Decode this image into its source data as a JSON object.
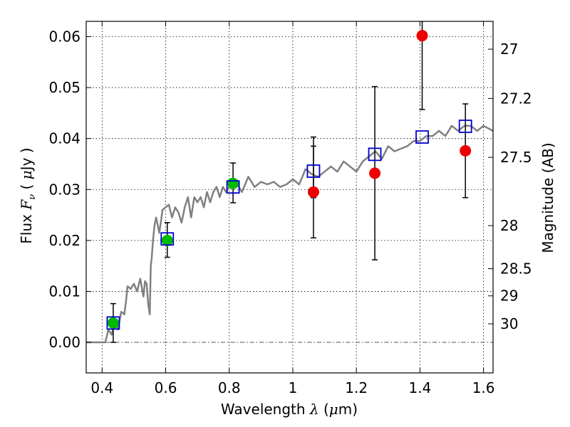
{
  "chart_data": {
    "type": "scatter",
    "xlabel": {
      "pre": "Wavelength ",
      "sym": "λ",
      "unit_open": " (",
      "unit_mu": "μ",
      "unit_rest": "m)"
    },
    "ylabel": {
      "pre": "Flux ",
      "sym": "F",
      "sub": "ν",
      "unit_open": " ( ",
      "unit_mu": "μ",
      "unit_rest": "Jy )"
    },
    "ylabel_right": "Magnitude (AB)",
    "xlim": [
      0.35,
      1.63
    ],
    "ylim": [
      -0.006,
      0.063
    ],
    "x_ticks": [
      0.4,
      0.6,
      0.8,
      1.0,
      1.2,
      1.4,
      1.6
    ],
    "x_tick_labels": [
      "0.4",
      "0.6",
      "0.8",
      "1",
      "1.2",
      "1.4",
      "1.6"
    ],
    "y_ticks": [
      0.0,
      0.01,
      0.02,
      0.03,
      0.04,
      0.05,
      0.06
    ],
    "y_tick_labels": [
      "0.00",
      "0.01",
      "0.02",
      "0.03",
      "0.04",
      "0.05",
      "0.06"
    ],
    "right_ticks": [
      {
        "label": "27",
        "mag": 27.0
      },
      {
        "label": "27.2",
        "mag": 27.2
      },
      {
        "label": "27.5",
        "mag": 27.5
      },
      {
        "label": "28",
        "mag": 28.0
      },
      {
        "label": "28.5",
        "mag": 28.5
      },
      {
        "label": "29",
        "mag": 29.0
      },
      {
        "label": "30",
        "mag": 30.0
      }
    ],
    "grid": true,
    "zero_line": true,
    "template_sed": {
      "color": "#808080",
      "x": [
        0.35,
        0.41,
        0.42,
        0.43,
        0.44,
        0.45,
        0.46,
        0.47,
        0.475,
        0.48,
        0.49,
        0.5,
        0.51,
        0.52,
        0.53,
        0.535,
        0.54,
        0.545,
        0.55,
        0.553,
        0.556,
        0.56,
        0.565,
        0.57,
        0.58,
        0.59,
        0.6,
        0.61,
        0.62,
        0.63,
        0.64,
        0.65,
        0.66,
        0.67,
        0.68,
        0.69,
        0.7,
        0.71,
        0.72,
        0.73,
        0.74,
        0.75,
        0.76,
        0.77,
        0.78,
        0.79,
        0.8,
        0.82,
        0.84,
        0.86,
        0.88,
        0.9,
        0.92,
        0.94,
        0.96,
        0.98,
        1.0,
        1.02,
        1.04,
        1.06,
        1.08,
        1.1,
        1.12,
        1.14,
        1.16,
        1.18,
        1.2,
        1.22,
        1.24,
        1.26,
        1.28,
        1.3,
        1.32,
        1.34,
        1.36,
        1.38,
        1.4,
        1.42,
        1.44,
        1.46,
        1.48,
        1.5,
        1.52,
        1.54,
        1.56,
        1.58,
        1.6,
        1.63
      ],
      "y": [
        0.0,
        0.0,
        0.0025,
        0.0015,
        0.004,
        0.0025,
        0.006,
        0.0055,
        0.008,
        0.011,
        0.0105,
        0.0115,
        0.01,
        0.0125,
        0.009,
        0.012,
        0.0115,
        0.0075,
        0.0055,
        0.015,
        0.0165,
        0.02,
        0.023,
        0.0245,
        0.0215,
        0.026,
        0.0265,
        0.027,
        0.0245,
        0.0265,
        0.0255,
        0.0235,
        0.0265,
        0.0285,
        0.0245,
        0.0285,
        0.0275,
        0.0285,
        0.0265,
        0.0295,
        0.0275,
        0.0295,
        0.0305,
        0.0285,
        0.0305,
        0.0295,
        0.0305,
        0.0315,
        0.0295,
        0.0325,
        0.0305,
        0.0315,
        0.031,
        0.0315,
        0.0305,
        0.031,
        0.032,
        0.031,
        0.034,
        0.033,
        0.0325,
        0.0335,
        0.0345,
        0.0335,
        0.0355,
        0.0345,
        0.0335,
        0.0355,
        0.0365,
        0.0375,
        0.036,
        0.0385,
        0.0375,
        0.038,
        0.0385,
        0.0395,
        0.0395,
        0.0405,
        0.0405,
        0.0415,
        0.0405,
        0.0425,
        0.0415,
        0.0425,
        0.0425,
        0.0415,
        0.0425,
        0.0415
      ]
    },
    "series": [
      {
        "marker": "circle",
        "color": "#00bb00",
        "x": [
          0.435,
          0.605,
          0.812
        ],
        "y": [
          0.0038,
          0.02,
          0.0312
        ],
        "err_low": [
          0.0038,
          0.0033,
          0.0038
        ],
        "err_high": [
          0.0038,
          0.0035,
          0.004
        ]
      },
      {
        "marker": "circle",
        "color": "#ee0000",
        "x": [
          1.065,
          1.258,
          1.407,
          1.543
        ],
        "y": [
          0.0295,
          0.0332,
          0.0602,
          0.0376
        ],
        "err_low": [
          0.009,
          0.017,
          0.0145,
          0.0092
        ],
        "err_high": [
          0.009,
          0.017,
          0.0145,
          0.0092
        ]
      },
      {
        "marker": "square",
        "color": "#0000cc",
        "x": [
          0.435,
          0.605,
          0.812,
          1.065,
          1.258,
          1.407,
          1.543
        ],
        "y": [
          0.0038,
          0.0203,
          0.0305,
          0.0336,
          0.0369,
          0.0403,
          0.0424
        ],
        "err_low": [
          null,
          null,
          null,
          0.0052,
          null,
          null,
          null
        ],
        "err_high": [
          null,
          null,
          null,
          0.0067,
          null,
          null,
          null
        ]
      }
    ]
  }
}
